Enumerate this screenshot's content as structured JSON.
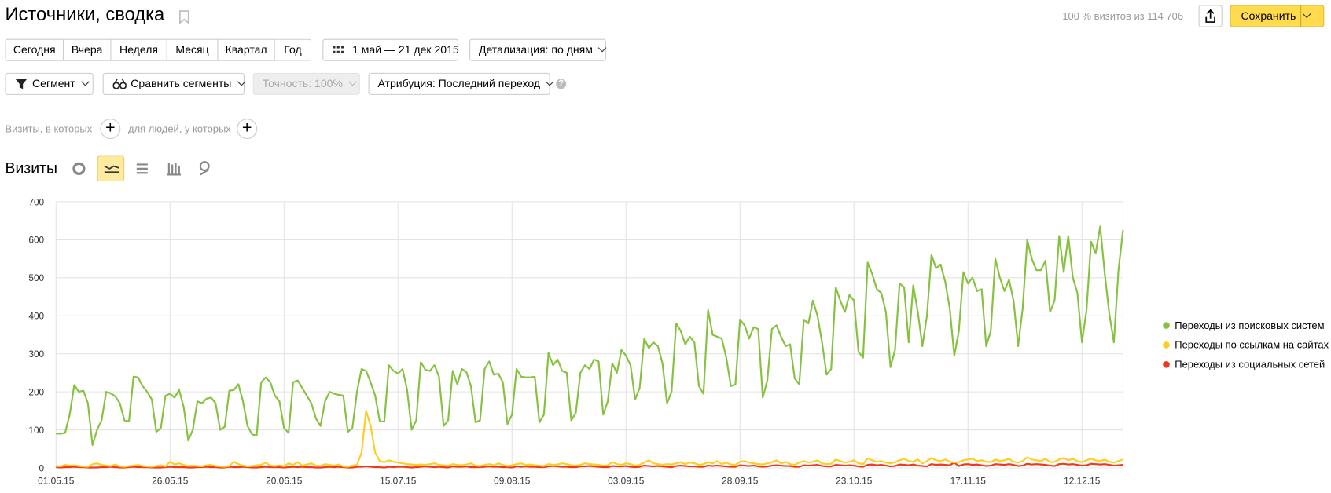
{
  "header": {
    "title": "Источники, сводка",
    "visits_share": "100 % визитов из 114 706",
    "save": "Сохранить"
  },
  "toolbar": {
    "periods": [
      "Сегодня",
      "Вчера",
      "Неделя",
      "Месяц",
      "Квартал",
      "Год"
    ],
    "date_range": "1 май — 21 дек 2015",
    "detail": "Детализация: по дням",
    "segment": "Сегмент",
    "compare": "Сравнить сегменты",
    "accuracy": "Точность: 100%",
    "attribution": "Атрибуция: Последний переход"
  },
  "filter": {
    "visits": "Визиты, в которых",
    "people": "для людей, у которых"
  },
  "section_title": "Визиты",
  "chart_data": {
    "type": "line",
    "xlim": [
      0,
      234
    ],
    "xticks": [
      {
        "value": 0,
        "label": "01.05.15"
      },
      {
        "value": 25,
        "label": "26.05.15"
      },
      {
        "value": 50,
        "label": "20.06.15"
      },
      {
        "value": 75,
        "label": "15.07.15"
      },
      {
        "value": 100,
        "label": "09.08.15"
      },
      {
        "value": 125,
        "label": "03.09.15"
      },
      {
        "value": 150,
        "label": "28.09.15"
      },
      {
        "value": 175,
        "label": "23.10.15"
      },
      {
        "value": 200,
        "label": "17.11.15"
      },
      {
        "value": 225,
        "label": "12.12.15"
      }
    ],
    "ylim": [
      0,
      700
    ],
    "yticks": [
      0,
      100,
      200,
      300,
      400,
      500,
      600,
      700
    ],
    "grid": true,
    "series": [
      {
        "name": "Переходы из поисковых систем",
        "color": "#86c240",
        "values": [
          90,
          90,
          92,
          140,
          218,
          200,
          203,
          170,
          60,
          100,
          125,
          200,
          196,
          188,
          170,
          125,
          122,
          240,
          238,
          215,
          200,
          180,
          95,
          105,
          190,
          195,
          185,
          205,
          160,
          72,
          100,
          175,
          170,
          182,
          185,
          170,
          100,
          108,
          203,
          205,
          220,
          175,
          110,
          88,
          85,
          225,
          238,
          225,
          190,
          175,
          105,
          92,
          225,
          230,
          210,
          190,
          170,
          130,
          110,
          175,
          200,
          195,
          192,
          190,
          95,
          105,
          200,
          260,
          255,
          225,
          190,
          122,
          122,
          270,
          255,
          248,
          260,
          205,
          100,
          125,
          278,
          258,
          255,
          270,
          240,
          110,
          125,
          255,
          220,
          260,
          252,
          215,
          120,
          125,
          260,
          280,
          245,
          248,
          225,
          115,
          140,
          260,
          240,
          238,
          238,
          240,
          120,
          140,
          302,
          270,
          285,
          255,
          250,
          125,
          145,
          250,
          270,
          260,
          285,
          280,
          140,
          175,
          275,
          250,
          310,
          295,
          270,
          180,
          210,
          340,
          315,
          330,
          320,
          275,
          170,
          200,
          380,
          360,
          325,
          345,
          330,
          215,
          195,
          415,
          350,
          345,
          340,
          290,
          215,
          220,
          390,
          375,
          340,
          370,
          365,
          185,
          230,
          365,
          375,
          345,
          320,
          325,
          235,
          220,
          390,
          380,
          440,
          400,
          330,
          245,
          260,
          475,
          440,
          410,
          455,
          440,
          305,
          290,
          540,
          510,
          470,
          460,
          410,
          265,
          310,
          485,
          475,
          330,
          480,
          410,
          320,
          400,
          560,
          525,
          535,
          490,
          420,
          295,
          360,
          515,
          485,
          500,
          465,
          470,
          320,
          360,
          550,
          500,
          465,
          495,
          440,
          320,
          420,
          600,
          550,
          520,
          520,
          545,
          410,
          440,
          610,
          515,
          610,
          500,
          460,
          330,
          415,
          595,
          565,
          635,
          510,
          405,
          330,
          520,
          625
        ]
      },
      {
        "name": "Переходы по ссылкам на сайтах",
        "color": "#ffcc1f",
        "values": [
          5,
          4,
          8,
          6,
          7,
          5,
          4,
          3,
          10,
          12,
          8,
          6,
          5,
          9,
          4,
          3,
          5,
          6,
          8,
          5,
          4,
          3,
          5,
          7,
          4,
          16,
          9,
          12,
          8,
          5,
          6,
          5,
          4,
          7,
          8,
          5,
          4,
          3,
          5,
          16,
          10,
          6,
          4,
          5,
          7,
          8,
          14,
          6,
          5,
          7,
          4,
          12,
          8,
          15,
          6,
          9,
          12,
          6,
          5,
          10,
          8,
          6,
          9,
          4,
          3,
          6,
          8,
          40,
          150,
          110,
          40,
          18,
          15,
          20,
          16,
          14,
          12,
          10,
          9,
          8,
          9,
          8,
          10,
          12,
          8,
          7,
          6,
          10,
          8,
          7,
          9,
          12,
          6,
          5,
          8,
          10,
          7,
          12,
          8,
          5,
          7,
          10,
          12,
          8,
          9,
          7,
          6,
          5,
          10,
          8,
          9,
          12,
          10,
          7,
          6,
          8,
          12,
          10,
          9,
          8,
          6,
          7,
          15,
          10,
          8,
          12,
          10,
          6,
          8,
          14,
          20,
          12,
          10,
          8,
          10,
          9,
          12,
          15,
          10,
          14,
          12,
          8,
          10,
          15,
          12,
          18,
          10,
          14,
          9,
          8,
          16,
          18,
          14,
          12,
          10,
          9,
          12,
          15,
          20,
          12,
          16,
          10,
          8,
          14,
          18,
          14,
          16,
          20,
          12,
          10,
          11,
          22,
          18,
          14,
          16,
          20,
          12,
          10,
          25,
          20,
          16,
          18,
          14,
          12,
          15,
          20,
          24,
          18,
          16,
          22,
          12,
          18,
          26,
          20,
          18,
          22,
          16,
          14,
          15,
          20,
          22,
          24,
          18,
          20,
          16,
          15,
          22,
          18,
          20,
          24,
          16,
          14,
          18,
          28,
          22,
          20,
          18,
          24,
          15,
          16,
          22,
          26,
          20,
          24,
          18,
          15,
          20,
          24,
          20,
          18,
          22,
          16,
          14,
          18,
          22
        ]
      },
      {
        "name": "Переходы из социальных сетей",
        "color": "#f0391c",
        "values": [
          2,
          1,
          2,
          2,
          3,
          2,
          2,
          1,
          1,
          1,
          2,
          2,
          3,
          2,
          1,
          1,
          2,
          3,
          2,
          2,
          2,
          1,
          1,
          1,
          2,
          3,
          2,
          2,
          2,
          1,
          1,
          2,
          2,
          3,
          2,
          2,
          1,
          1,
          3,
          2,
          2,
          3,
          2,
          1,
          1,
          2,
          3,
          2,
          2,
          2,
          1,
          2,
          3,
          2,
          3,
          2,
          2,
          1,
          1,
          2,
          3,
          2,
          3,
          2,
          1,
          1,
          3,
          3,
          4,
          3,
          2,
          2,
          1,
          3,
          2,
          3,
          3,
          2,
          1,
          2,
          3,
          4,
          3,
          2,
          3,
          2,
          1,
          4,
          3,
          3,
          4,
          2,
          2,
          2,
          3,
          4,
          3,
          3,
          2,
          2,
          1,
          4,
          3,
          4,
          3,
          3,
          2,
          2,
          4,
          5,
          4,
          3,
          3,
          2,
          2,
          4,
          4,
          5,
          4,
          3,
          2,
          2,
          5,
          4,
          4,
          5,
          3,
          2,
          3,
          6,
          5,
          4,
          5,
          4,
          3,
          2,
          5,
          6,
          5,
          4,
          4,
          3,
          3,
          6,
          5,
          6,
          5,
          4,
          3,
          3,
          7,
          6,
          5,
          6,
          4,
          3,
          4,
          6,
          7,
          6,
          5,
          5,
          3,
          3,
          7,
          6,
          7,
          8,
          5,
          4,
          4,
          8,
          7,
          6,
          7,
          6,
          4,
          3,
          8,
          9,
          7,
          8,
          6,
          4,
          5,
          9,
          8,
          7,
          9,
          6,
          5,
          4,
          10,
          8,
          9,
          8,
          7,
          14,
          5,
          9,
          10,
          8,
          9,
          7,
          5,
          6,
          10,
          9,
          8,
          10,
          8,
          5,
          6,
          11,
          9,
          10,
          9,
          8,
          6,
          5,
          10,
          11,
          9,
          10,
          8,
          6,
          7,
          11,
          10,
          9,
          10,
          8,
          6,
          7,
          8
        ]
      }
    ]
  }
}
